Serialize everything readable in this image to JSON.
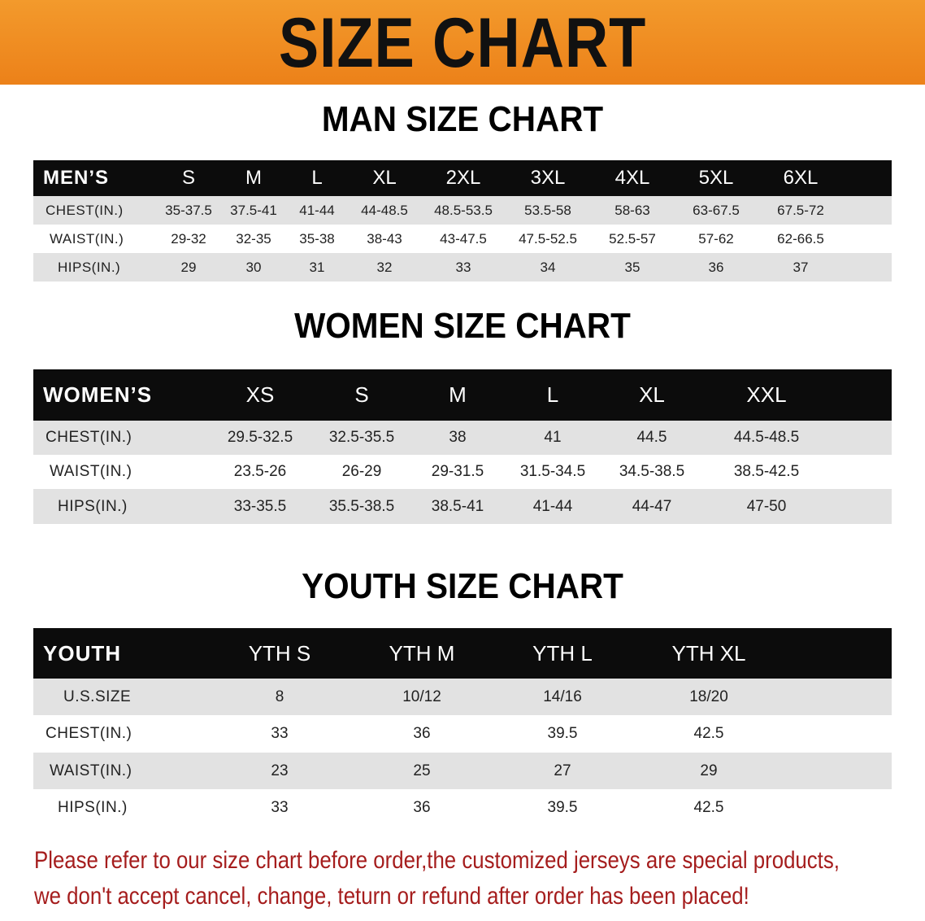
{
  "header": {
    "title": "SIZE CHART"
  },
  "men": {
    "title": "MAN SIZE CHART",
    "columns": [
      "MEN’S",
      "S",
      "M",
      "L",
      "XL",
      "2XL",
      "3XL",
      "4XL",
      "5XL",
      "6XL"
    ],
    "rows": [
      [
        "CHEST(IN.)",
        "35-37.5",
        "37.5-41",
        "41-44",
        "44-48.5",
        "48.5-53.5",
        "53.5-58",
        "58-63",
        "63-67.5",
        "67.5-72"
      ],
      [
        "WAIST(IN.)",
        "29-32",
        "32-35",
        "35-38",
        "38-43",
        "43-47.5",
        "47.5-52.5",
        "52.5-57",
        "57-62",
        "62-66.5"
      ],
      [
        "HIPS(IN.)",
        "29",
        "30",
        "31",
        "32",
        "33",
        "34",
        "35",
        "36",
        "37"
      ]
    ]
  },
  "women": {
    "title": "WOMEN SIZE CHART",
    "columns": [
      "WOMEN’S",
      "XS",
      "S",
      "M",
      "L",
      "XL",
      "XXL"
    ],
    "rows": [
      [
        "CHEST(IN.)",
        "29.5-32.5",
        "32.5-35.5",
        "38",
        "41",
        "44.5",
        "44.5-48.5"
      ],
      [
        "WAIST(IN.)",
        "23.5-26",
        "26-29",
        "29-31.5",
        "31.5-34.5",
        "34.5-38.5",
        "38.5-42.5"
      ],
      [
        "HIPS(IN.)",
        "33-35.5",
        "35.5-38.5",
        "38.5-41",
        "41-44",
        "44-47",
        "47-50"
      ]
    ]
  },
  "youth": {
    "title": "YOUTH SIZE CHART",
    "columns": [
      "YOUTH",
      "YTH S",
      "YTH M",
      "YTH L",
      "YTH XL"
    ],
    "rows": [
      [
        "U.S.SIZE",
        "8",
        "10/12",
        "14/16",
        "18/20"
      ],
      [
        "CHEST(IN.)",
        "33",
        "36",
        "39.5",
        "42.5"
      ],
      [
        "WAIST(IN.)",
        "23",
        "25",
        "27",
        "29"
      ],
      [
        "HIPS(IN.)",
        "33",
        "36",
        "39.5",
        "42.5"
      ]
    ]
  },
  "notice": {
    "line1": "Please refer to our size chart before order,the customized jerseys are special products,",
    "line2": "we don't accept cancel, change, teturn or refund after order has been placed!"
  },
  "colors": {
    "banner": "#ef8a1f",
    "header_row": "#0c0c0c",
    "stripe": "#e2e2e2",
    "notice": "#a51d1d"
  }
}
